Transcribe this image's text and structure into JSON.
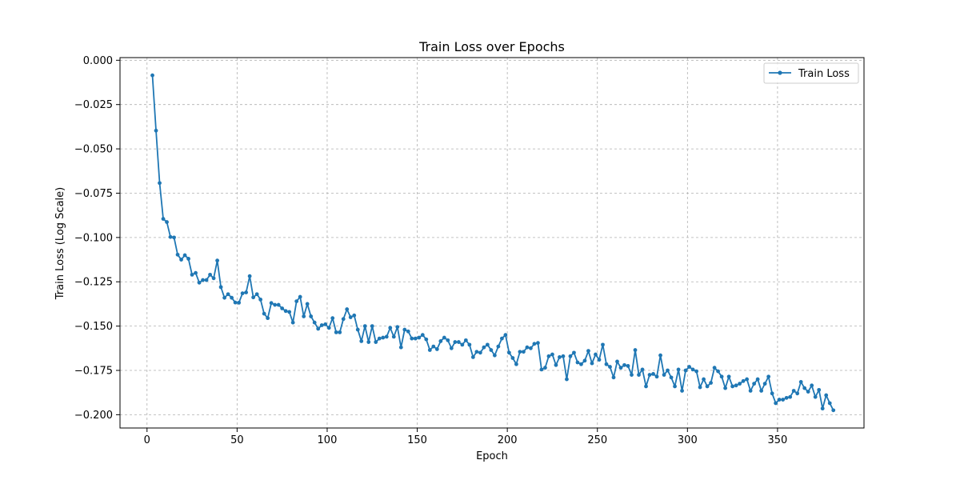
{
  "chart_data": {
    "type": "line",
    "title": "Train Loss over Epochs",
    "xlabel": "Epoch",
    "ylabel": "Train Loss (Log Scale)",
    "xlim": [
      -15,
      398
    ],
    "ylim": [
      -0.2075,
      0.0015
    ],
    "xticks": [
      0,
      50,
      100,
      150,
      200,
      250,
      300,
      350
    ],
    "yticks": [
      0.0,
      -0.025,
      -0.05,
      -0.075,
      -0.1,
      -0.125,
      -0.15,
      -0.175,
      -0.2
    ],
    "ytick_labels": [
      "0.000",
      "−0.025",
      "−0.050",
      "−0.075",
      "−0.100",
      "−0.125",
      "−0.150",
      "−0.175",
      "−0.200"
    ],
    "grid": true,
    "legend_position": "top-right",
    "series": [
      {
        "name": "Train Loss",
        "color": "#1f77b4",
        "marker": "circle",
        "x": [
          3,
          5,
          7,
          9,
          11,
          13,
          15,
          17,
          19,
          21,
          23,
          25,
          27,
          29,
          31,
          33,
          35,
          37,
          39,
          41,
          43,
          45,
          47,
          49,
          51,
          53,
          55,
          57,
          59,
          61,
          63,
          65,
          67,
          69,
          71,
          73,
          75,
          77,
          79,
          81,
          83,
          85,
          87,
          89,
          91,
          93,
          95,
          97,
          99,
          101,
          103,
          105,
          107,
          109,
          111,
          113,
          115,
          117,
          119,
          121,
          123,
          125,
          127,
          129,
          131,
          133,
          135,
          137,
          139,
          141,
          143,
          145,
          147,
          149,
          151,
          153,
          155,
          157,
          159,
          161,
          163,
          165,
          167,
          169,
          171,
          173,
          175,
          177,
          179,
          181,
          183,
          185,
          187,
          189,
          191,
          193,
          195,
          197,
          199,
          201,
          203,
          205,
          207,
          209,
          211,
          213,
          215,
          217,
          219,
          221,
          223,
          225,
          227,
          229,
          231,
          233,
          235,
          237,
          239,
          241,
          243,
          245,
          247,
          249,
          251,
          253,
          255,
          257,
          259,
          261,
          263,
          265,
          267,
          269,
          271,
          273,
          275,
          277,
          279,
          281,
          283,
          285,
          287,
          289,
          291,
          293,
          295,
          297,
          299,
          301,
          303,
          305,
          307,
          309,
          311,
          313,
          315,
          317,
          319,
          321,
          323,
          325,
          327,
          329,
          331,
          333,
          335,
          337,
          339,
          341,
          343,
          345,
          347,
          349,
          351,
          353,
          355,
          357,
          359,
          361,
          363,
          365,
          367,
          369,
          371,
          373,
          375,
          377,
          379,
          381
        ],
        "y": [
          -0.0085,
          -0.0397,
          -0.0693,
          -0.0895,
          -0.0913,
          -0.0997,
          -0.1,
          -0.1097,
          -0.1125,
          -0.11,
          -0.112,
          -0.121,
          -0.12,
          -0.1255,
          -0.124,
          -0.124,
          -0.121,
          -0.123,
          -0.113,
          -0.128,
          -0.134,
          -0.132,
          -0.134,
          -0.1367,
          -0.1368,
          -0.1315,
          -0.131,
          -0.1218,
          -0.1338,
          -0.132,
          -0.135,
          -0.143,
          -0.1455,
          -0.137,
          -0.138,
          -0.138,
          -0.14,
          -0.1415,
          -0.142,
          -0.148,
          -0.136,
          -0.1335,
          -0.1445,
          -0.1375,
          -0.1445,
          -0.148,
          -0.1515,
          -0.1495,
          -0.149,
          -0.151,
          -0.1455,
          -0.1535,
          -0.1535,
          -0.146,
          -0.1405,
          -0.145,
          -0.144,
          -0.152,
          -0.1585,
          -0.15,
          -0.159,
          -0.15,
          -0.159,
          -0.157,
          -0.1565,
          -0.156,
          -0.151,
          -0.156,
          -0.1505,
          -0.162,
          -0.152,
          -0.153,
          -0.157,
          -0.157,
          -0.1565,
          -0.155,
          -0.1575,
          -0.1635,
          -0.1615,
          -0.163,
          -0.1585,
          -0.1565,
          -0.158,
          -0.1625,
          -0.159,
          -0.159,
          -0.1605,
          -0.158,
          -0.1605,
          -0.1675,
          -0.1645,
          -0.165,
          -0.162,
          -0.1605,
          -0.1635,
          -0.1665,
          -0.1615,
          -0.157,
          -0.155,
          -0.165,
          -0.168,
          -0.1715,
          -0.1645,
          -0.1645,
          -0.162,
          -0.1625,
          -0.16,
          -0.1595,
          -0.1745,
          -0.1735,
          -0.167,
          -0.166,
          -0.172,
          -0.1675,
          -0.167,
          -0.18,
          -0.167,
          -0.165,
          -0.1705,
          -0.1715,
          -0.1695,
          -0.164,
          -0.171,
          -0.166,
          -0.169,
          -0.1605,
          -0.1715,
          -0.173,
          -0.179,
          -0.17,
          -0.1735,
          -0.172,
          -0.1725,
          -0.1775,
          -0.1635,
          -0.1775,
          -0.1745,
          -0.184,
          -0.1775,
          -0.177,
          -0.1785,
          -0.1665,
          -0.1775,
          -0.175,
          -0.179,
          -0.184,
          -0.1745,
          -0.1865,
          -0.175,
          -0.173,
          -0.1745,
          -0.1755,
          -0.1845,
          -0.18,
          -0.184,
          -0.182,
          -0.1735,
          -0.1755,
          -0.1785,
          -0.185,
          -0.1785,
          -0.184,
          -0.1835,
          -0.1825,
          -0.181,
          -0.18,
          -0.1865,
          -0.1825,
          -0.18,
          -0.1865,
          -0.1825,
          -0.1785,
          -0.188,
          -0.1935,
          -0.1915,
          -0.1915,
          -0.1905,
          -0.19,
          -0.1865,
          -0.188,
          -0.1815,
          -0.185,
          -0.187,
          -0.1835,
          -0.19,
          -0.186,
          -0.1965,
          -0.189,
          -0.1935,
          -0.1975
        ]
      }
    ]
  }
}
